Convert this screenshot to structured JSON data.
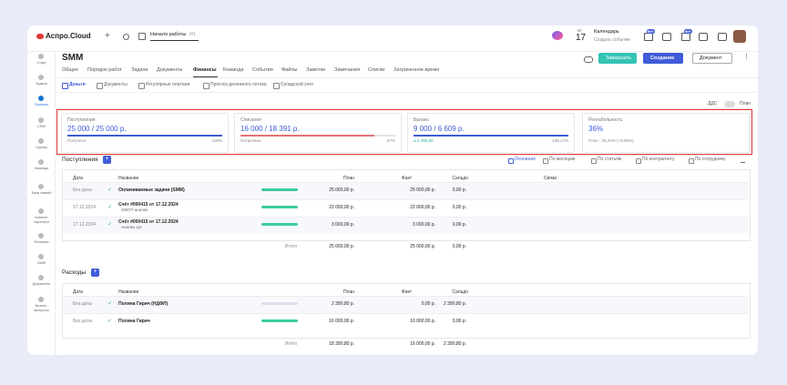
{
  "header": {
    "logo": "Аспро.Cloud",
    "onboarding": "Начало работы",
    "onboarding_progress": "0/1",
    "weekday": "Вт",
    "day": "17",
    "calendar": "Календарь",
    "calendar_sub": "Создать событие",
    "badges": [
      "99+",
      "99+"
    ]
  },
  "sidebar": [
    "Старт",
    "Задачи",
    "Проекты",
    "CRM",
    "Группы",
    "Команда",
    "База знаний",
    "Кабинет партнера",
    "Финансы",
    "Хабб",
    "Документы",
    "Бизнес-процессы"
  ],
  "project": {
    "title": "SMM",
    "tabs": [
      "Общее",
      "Порядок работ",
      "Задачи",
      "Документы",
      "Финансы",
      "Команда",
      "События",
      "Файлы",
      "Заметки",
      "Замечания",
      "Списки",
      "Затраченное время"
    ],
    "buttons": {
      "finish": "Завершить",
      "create": "Создание",
      "document": "Документ"
    }
  },
  "subtabs": [
    "Деньги",
    "Документы",
    "Регулярные платежи",
    "Прогноз денежного потока",
    "Складской учет"
  ],
  "toggle": {
    "left": "ДДС",
    "right": "План"
  },
  "summary": [
    {
      "label": "Поступления",
      "value": "25 000 / 25 000 р.",
      "sub": "Получено",
      "percent": "100%"
    },
    {
      "label": "Списания",
      "value": "16 000 / 18 391 р.",
      "sub": "Потрачено",
      "percent": "87%"
    },
    {
      "label": "Баланс",
      "value": "9 000 / 6 609 р.",
      "sub": "Δ 2 390,80",
      "percent": "136,17%"
    },
    {
      "label": "Рентабельность",
      "value": "36%",
      "sub": "План : 26,44% (+9,56%)"
    }
  ],
  "income": {
    "title": "Поступления",
    "views": [
      "Основная",
      "По месяцам",
      "По статьям",
      "По контрагенту",
      "По сотруднику"
    ],
    "columns": [
      "Дата",
      "Название",
      "План",
      "Факт",
      "Сальдо",
      "Связи"
    ],
    "rows": [
      {
        "date": "Без даты",
        "name": "Оплачиваемые задачи (SMM)",
        "plan": "25 000,00 р.",
        "fact": "25 000,00 р.",
        "saldo": "0,00 р."
      },
      {
        "date": "17.12.2024",
        "name": "Счёт #000415 от 17.12.2024",
        "note": "SWOT-анализ",
        "plan": "22 000,00 р.",
        "fact": "22 000,00 р.",
        "saldo": "0,00 р."
      },
      {
        "date": "17.12.2024",
        "name": "Счёт #000415 от 17.12.2024",
        "note": "Анализ ЦА",
        "plan": "3 000,00 р.",
        "fact": "3 000,00 р.",
        "saldo": "0,00 р."
      }
    ],
    "total": {
      "label": "Итого",
      "plan": "25 000,00 р.",
      "fact": "25 000,00 р.",
      "saldo": "0,00 р."
    }
  },
  "expenses": {
    "title": "Расходы",
    "columns": [
      "Дата",
      "Название",
      "План",
      "Факт",
      "Сальдо"
    ],
    "rows": [
      {
        "date": "Без даты",
        "name": "Полина Гирич (НДФЛ)",
        "plan": "2 390,80 р.",
        "fact": "0,00 р.",
        "saldo": "2 390,80 р."
      },
      {
        "date": "Без даты",
        "name": "Полина Гирич",
        "plan": "16 000,00 р.",
        "fact": "16 000,00 р.",
        "saldo": "0,00 р."
      }
    ],
    "total": {
      "label": "Итого",
      "plan": "18 390,80 р.",
      "fact": "16 000,00 р.",
      "saldo": "2 390,80 р."
    }
  }
}
